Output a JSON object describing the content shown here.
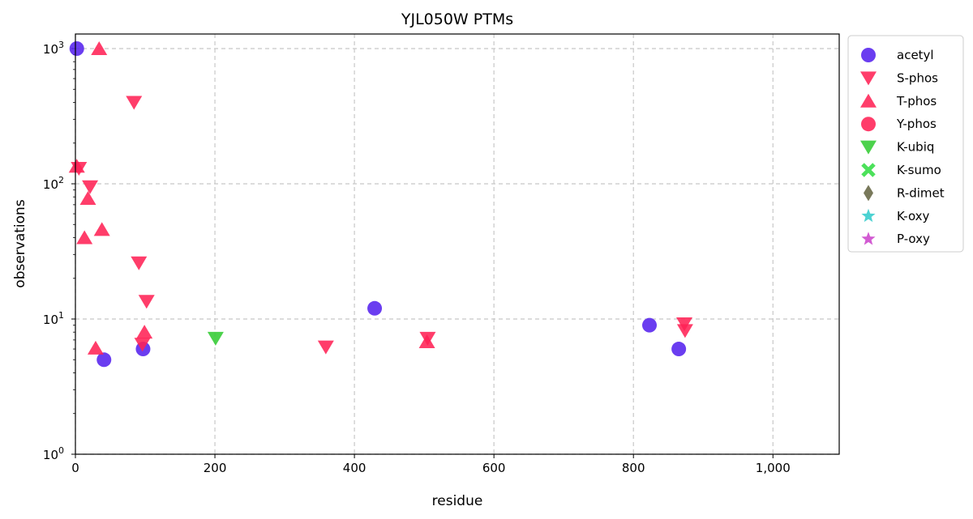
{
  "chart_data": {
    "type": "scatter",
    "title": "YJL050W PTMs",
    "xlabel": "residue",
    "ylabel": "observations",
    "xlim": [
      0,
      1095
    ],
    "ylim": [
      1,
      1300
    ],
    "yscale": "log",
    "grid": true,
    "legend_placement": "outside-top-right",
    "x_ticks": [
      {
        "value": 0,
        "label": "0"
      },
      {
        "value": 200,
        "label": "200"
      },
      {
        "value": 400,
        "label": "400"
      },
      {
        "value": 600,
        "label": "600"
      },
      {
        "value": 800,
        "label": "800"
      },
      {
        "value": 1000,
        "label": "1,000"
      }
    ],
    "y_ticks": [
      {
        "value": 1,
        "base": "10",
        "exp": "0"
      },
      {
        "value": 10,
        "base": "10",
        "exp": "1"
      },
      {
        "value": 100,
        "base": "10",
        "exp": "2"
      },
      {
        "value": 1000,
        "base": "10",
        "exp": "3"
      }
    ],
    "series": [
      {
        "name": "acetyl",
        "marker": "circle",
        "color": "#5522ee",
        "points": [
          [
            2,
            1000
          ],
          [
            41,
            5
          ],
          [
            97,
            6
          ],
          [
            429,
            12
          ],
          [
            823,
            9
          ],
          [
            865,
            6
          ]
        ]
      },
      {
        "name": "S-phos",
        "marker": "triangle-down",
        "color": "#ff2255",
        "points": [
          [
            5,
            130
          ],
          [
            21,
            95
          ],
          [
            84,
            400
          ],
          [
            91,
            26
          ],
          [
            96,
            6.5
          ],
          [
            102,
            13.5
          ],
          [
            359,
            6.2
          ],
          [
            505,
            7.2
          ],
          [
            873,
            9.2
          ],
          [
            874,
            8.2
          ]
        ]
      },
      {
        "name": "T-phos",
        "marker": "triangle-up",
        "color": "#ff2255",
        "points": [
          [
            2,
            135
          ],
          [
            13,
            40
          ],
          [
            18,
            78
          ],
          [
            29,
            6.1
          ],
          [
            34,
            1000
          ],
          [
            38,
            46
          ],
          [
            99,
            8
          ],
          [
            504,
            6.8
          ]
        ]
      },
      {
        "name": "Y-phos",
        "marker": "circle",
        "color": "#ff2255",
        "points": []
      },
      {
        "name": "K-ubiq",
        "marker": "triangle-down",
        "color": "#33cc33",
        "points": [
          [
            201,
            7.2
          ]
        ]
      },
      {
        "name": "K-sumo",
        "marker": "x",
        "color": "#33dd44",
        "points": []
      },
      {
        "name": "R-dimet",
        "marker": "diamond",
        "color": "#666644",
        "points": []
      },
      {
        "name": "K-oxy",
        "marker": "star",
        "color": "#33cccc",
        "points": []
      },
      {
        "name": "P-oxy",
        "marker": "star",
        "color": "#cc44cc",
        "points": []
      }
    ]
  }
}
